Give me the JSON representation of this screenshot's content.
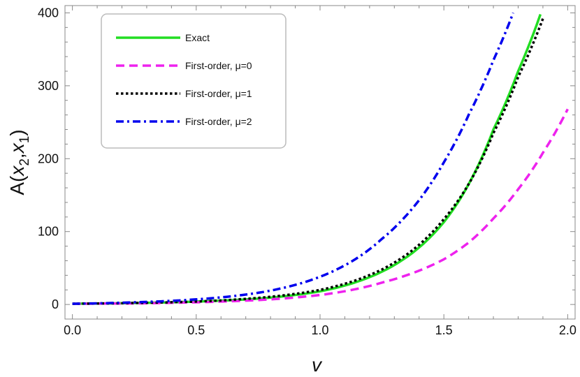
{
  "chart_data": {
    "type": "line",
    "title": "",
    "xlabel": "v",
    "ylabel": "A(x2,x1)",
    "xlim": [
      -0.03,
      2.03
    ],
    "ylim": [
      -20,
      410
    ],
    "xticks": [
      0.0,
      0.5,
      1.0,
      1.5,
      2.0
    ],
    "xtick_labels": [
      "0.0",
      "0.5",
      "1.0",
      "1.5",
      "2.0"
    ],
    "yticks": [
      0,
      100,
      200,
      300,
      400
    ],
    "ytick_labels": [
      "0",
      "100",
      "200",
      "300",
      "400"
    ],
    "grid": false,
    "legend_position": "top-left",
    "series": [
      {
        "name": "Exact",
        "color": "#22dd22",
        "dash": "solid",
        "x": [
          0.0,
          0.25,
          0.5,
          0.75,
          1.0,
          1.25,
          1.5,
          1.6,
          1.7,
          1.8,
          1.89
        ],
        "y": [
          1,
          2,
          4,
          8,
          18,
          45,
          113,
          165,
          240,
          320,
          398
        ]
      },
      {
        "name": "First-order, μ=0",
        "color": "#ee22ee",
        "dash": "dashed",
        "x": [
          0.0,
          0.25,
          0.5,
          0.75,
          1.0,
          1.25,
          1.5,
          1.6,
          1.7,
          1.8,
          1.9,
          2.0
        ],
        "y": [
          1,
          1.5,
          3,
          6,
          13,
          30,
          62,
          85,
          118,
          158,
          208,
          268
        ]
      },
      {
        "name": "First-order, μ=1",
        "color": "#000000",
        "dash": "dotted",
        "x": [
          0.0,
          0.25,
          0.5,
          0.75,
          1.0,
          1.25,
          1.5,
          1.6,
          1.7,
          1.8,
          1.9
        ],
        "y": [
          1,
          2,
          4,
          9,
          20,
          48,
          117,
          165,
          235,
          312,
          392
        ]
      },
      {
        "name": "First-order, μ=2",
        "color": "#0000ee",
        "dash": "dashdot",
        "x": [
          0.0,
          0.25,
          0.5,
          0.75,
          1.0,
          1.25,
          1.5,
          1.6,
          1.7,
          1.78
        ],
        "y": [
          1,
          3,
          7,
          16,
          38,
          90,
          195,
          260,
          335,
          400
        ]
      }
    ]
  }
}
